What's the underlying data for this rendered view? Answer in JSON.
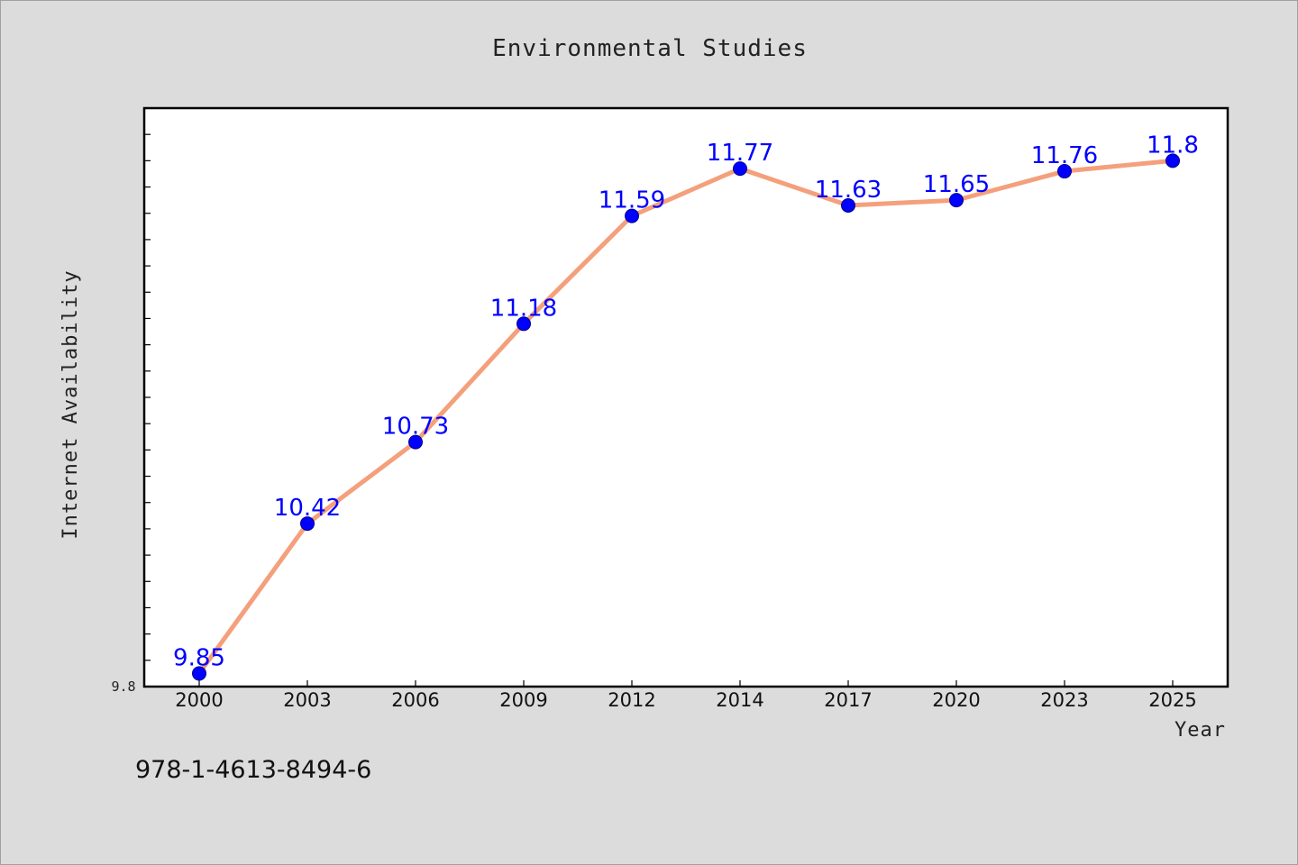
{
  "chart_data": {
    "type": "line",
    "title": "Environmental Studies",
    "xlabel": "Year",
    "ylabel": "Internet Availability",
    "categories": [
      "2000",
      "2003",
      "2006",
      "2009",
      "2012",
      "2014",
      "2017",
      "2020",
      "2023",
      "2025"
    ],
    "values": [
      9.85,
      10.42,
      10.73,
      11.18,
      11.59,
      11.77,
      11.63,
      11.65,
      11.76,
      11.8
    ],
    "data_labels": [
      "9.85",
      "10.42",
      "10.73",
      "11.18",
      "11.59",
      "11.77",
      "11.63",
      "11.65",
      "11.76",
      "11.8"
    ],
    "ylim": [
      9.8,
      12.0
    ],
    "y_tick_labels": [
      "9.8"
    ],
    "line_color": "#f4a07c",
    "marker_color": "#0000ff",
    "label_color": "#0000ff",
    "plot_background": "#ffffff",
    "page_background": "#dcdcdc",
    "grid": false,
    "legend": "none"
  },
  "footer": {
    "isbn": "978-1-4613-8494-6"
  }
}
